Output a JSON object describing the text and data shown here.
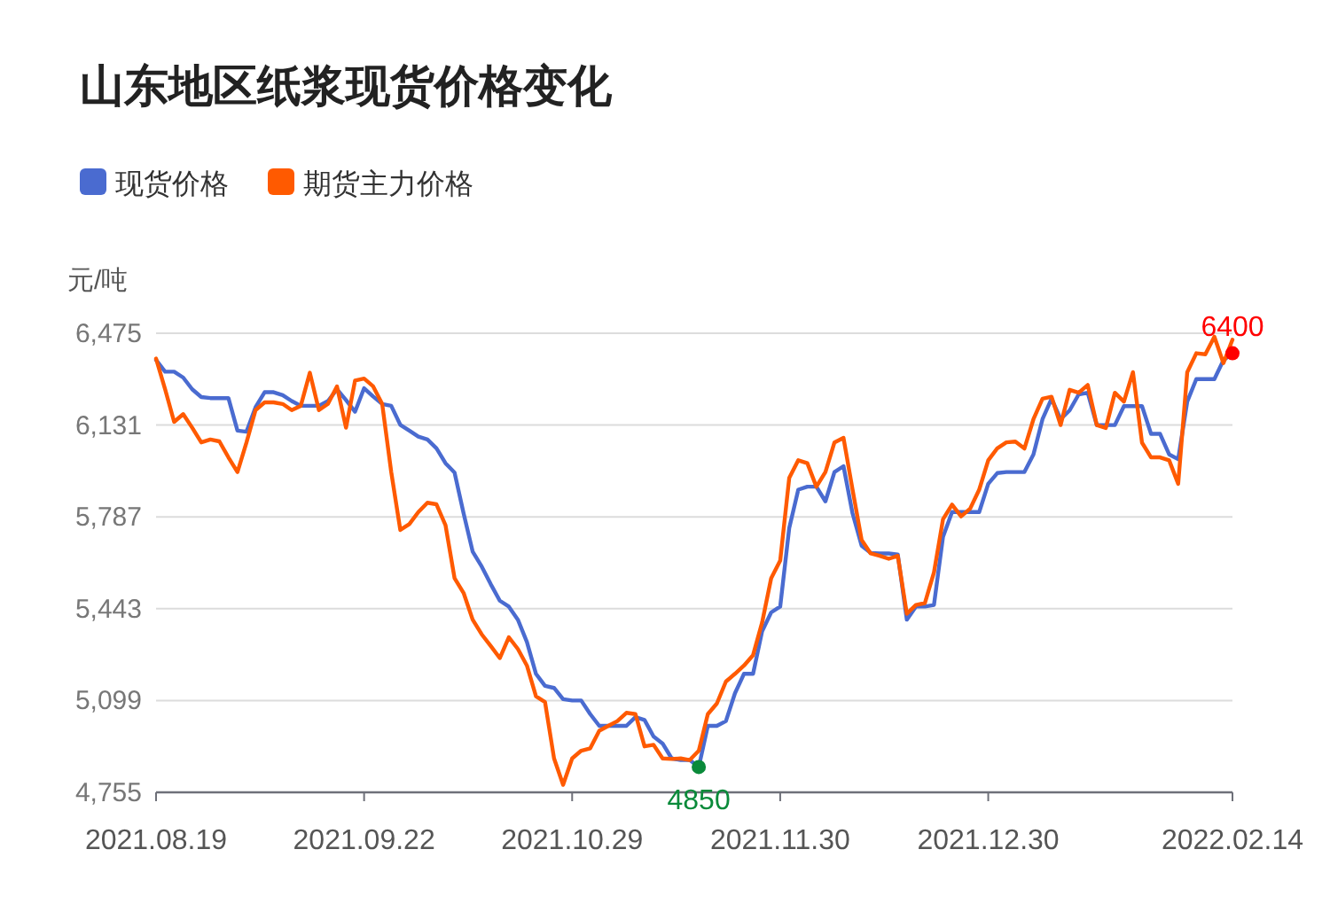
{
  "chart_data": {
    "type": "line",
    "title": "山东地区纸浆现货价格变化",
    "ylabel": "元/吨",
    "categories": [
      "2021.08.19",
      null,
      null,
      null,
      null,
      null,
      null,
      null,
      null,
      null,
      null,
      null,
      null,
      null,
      null,
      null,
      null,
      null,
      null,
      null,
      null,
      null,
      null,
      "2021.09.22",
      null,
      null,
      null,
      null,
      null,
      null,
      null,
      null,
      null,
      null,
      null,
      null,
      null,
      null,
      null,
      null,
      null,
      null,
      null,
      null,
      null,
      null,
      "2021.10.29",
      null,
      null,
      null,
      null,
      null,
      null,
      null,
      null,
      null,
      null,
      null,
      null,
      null,
      null,
      null,
      null,
      null,
      null,
      null,
      null,
      null,
      null,
      "2021.11.30",
      null,
      null,
      null,
      null,
      null,
      null,
      null,
      null,
      null,
      null,
      null,
      null,
      null,
      null,
      null,
      null,
      null,
      null,
      null,
      null,
      null,
      null,
      "2021.12.30",
      null,
      null,
      null,
      null,
      null,
      null,
      null,
      null,
      null,
      null,
      null,
      null,
      null,
      null,
      null,
      null,
      null,
      null,
      null,
      null,
      null,
      null,
      null,
      null,
      null,
      null,
      "2022.02.14"
    ],
    "series": [
      {
        "name": "现货价格",
        "color": "#4a6bd0",
        "values": [
          6375,
          6331,
          6331,
          6309,
          6265,
          6236,
          6232,
          6232,
          6232,
          6110,
          6106,
          6198,
          6254,
          6254,
          6243,
          6221,
          6203,
          6203,
          6203,
          6221,
          6265,
          6225,
          6181,
          6269,
          6238,
          6210,
          6203,
          6132,
          6110,
          6088,
          6077,
          6044,
          5988,
          5953,
          5800,
          5657,
          5601,
          5535,
          5473,
          5451,
          5402,
          5318,
          5199,
          5154,
          5146,
          5104,
          5099,
          5099,
          5048,
          5004,
          5004,
          5004,
          5004,
          5037,
          5026,
          4964,
          4938,
          4882,
          4876,
          4876,
          4850,
          5004,
          5004,
          5022,
          5126,
          5199,
          5199,
          5358,
          5429,
          5451,
          5745,
          5889,
          5900,
          5900,
          5845,
          5955,
          5977,
          5800,
          5679,
          5652,
          5650,
          5650,
          5646,
          5402,
          5451,
          5451,
          5457,
          5712,
          5805,
          5805,
          5805,
          5805,
          5911,
          5951,
          5955,
          5955,
          5955,
          6021,
          6153,
          6230,
          6153,
          6186,
          6246,
          6252,
          6131,
          6131,
          6131,
          6202,
          6202,
          6202,
          6098,
          6098,
          6021,
          6003,
          6219,
          6303,
          6303,
          6303,
          6374,
          6400
        ]
      },
      {
        "name": "期货主力价格",
        "color": "#ff5a00",
        "values": [
          6380,
          6265,
          6143,
          6172,
          6121,
          6066,
          6077,
          6070,
          6010,
          5955,
          6066,
          6187,
          6216,
          6216,
          6210,
          6187,
          6203,
          6327,
          6187,
          6210,
          6276,
          6121,
          6298,
          6305,
          6276,
          6210,
          5955,
          5738,
          5760,
          5805,
          5840,
          5834,
          5756,
          5557,
          5502,
          5402,
          5347,
          5303,
          5258,
          5336,
          5292,
          5230,
          5115,
          5093,
          4882,
          4783,
          4882,
          4911,
          4920,
          4986,
          5004,
          5022,
          5053,
          5048,
          4927,
          4933,
          4882,
          4880,
          4882,
          4876,
          4911,
          5048,
          5088,
          5170,
          5199,
          5230,
          5269,
          5391,
          5557,
          5623,
          5933,
          5999,
          5988,
          5900,
          5955,
          6066,
          6083,
          5889,
          5701,
          5650,
          5641,
          5630,
          5641,
          5424,
          5457,
          5464,
          5579,
          5778,
          5833,
          5789,
          5818,
          5889,
          5999,
          6044,
          6066,
          6069,
          6043,
          6153,
          6230,
          6237,
          6131,
          6263,
          6252,
          6281,
          6131,
          6120,
          6252,
          6219,
          6329,
          6065,
          6010,
          6010,
          5999,
          5911,
          6329,
          6400,
          6396,
          6462,
          6363,
          6451
        ]
      }
    ],
    "ylim": [
      4755,
      6475
    ],
    "yticks": [
      {
        "value": 4755,
        "label": "4,755"
      },
      {
        "value": 5099,
        "label": "5,099"
      },
      {
        "value": 5443,
        "label": "5,443"
      },
      {
        "value": 5787,
        "label": "5,787"
      },
      {
        "value": 6131,
        "label": "6,131"
      },
      {
        "value": 6475,
        "label": "6,475"
      }
    ],
    "grid": "y",
    "legend": "top left",
    "marker": "none",
    "line_style": "solid",
    "annotations": [
      {
        "text": "4850",
        "y": 4850
      },
      {
        "text": "6400",
        "y": 6400
      }
    ]
  }
}
